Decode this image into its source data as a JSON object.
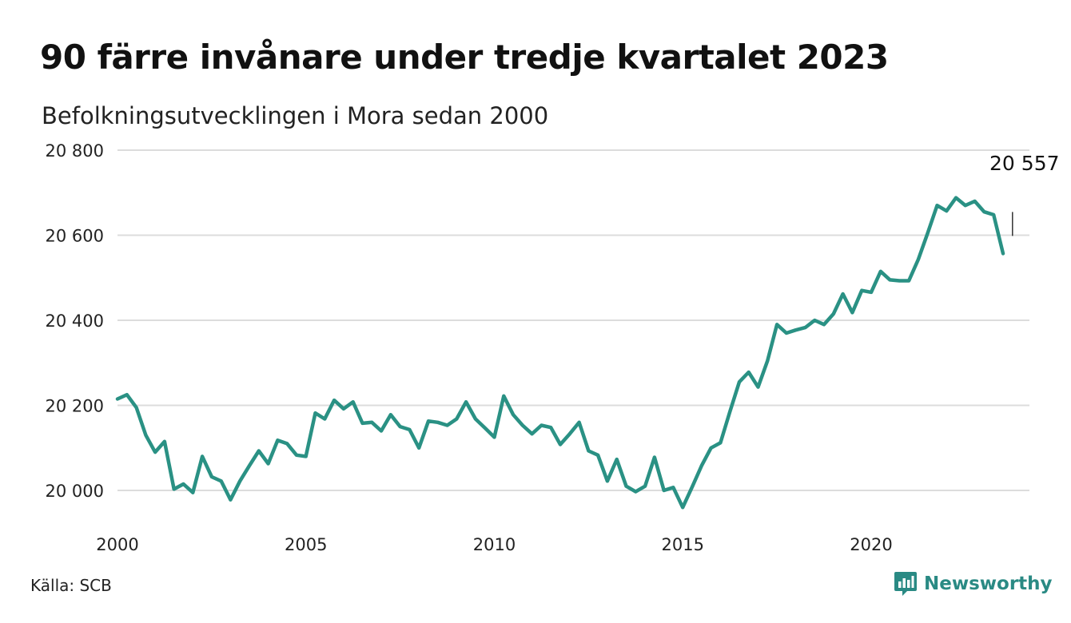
{
  "title": "90 färre invånare under tredje kvartalet 2023",
  "subtitle": "Befolkningsutvecklingen i Mora sedan 2000",
  "source": "Källa: SCB",
  "logo": {
    "text": "Newsworthy",
    "icon": "newsworthy-chart-bubble-icon",
    "color": "#2a8a84"
  },
  "chart_data": {
    "type": "line",
    "title": "90 färre invånare under tredje kvartalet 2023",
    "xlabel": "",
    "ylabel": "",
    "xlim": [
      2000,
      2024.2
    ],
    "ylim": [
      19930,
      20810
    ],
    "x_ticks": [
      2000,
      2005,
      2010,
      2015,
      2020
    ],
    "x_tick_labels": [
      "2000",
      "2005",
      "2010",
      "2015",
      "2020"
    ],
    "y_ticks": [
      20000,
      20200,
      20400,
      20600,
      20800
    ],
    "y_tick_labels": [
      "20 000",
      "20 200",
      "20 400",
      "20 600",
      "20 800"
    ],
    "grid": "horizontal",
    "legend": "none",
    "line_color": "#2a9184",
    "annotation": {
      "text": "20 557",
      "x": 2023.75,
      "y": 20557
    },
    "series": [
      {
        "start": 2000.0,
        "step": 0.25,
        "values": [
          20215,
          20225,
          20195,
          20130,
          20090,
          20115,
          20003,
          20015,
          19995,
          20080,
          20032,
          20022,
          19978,
          20022,
          20058,
          20093,
          20063,
          20118,
          20110,
          20083,
          20080,
          20182,
          20168,
          20212,
          20192,
          20208,
          20158,
          20160,
          20140,
          20178,
          20150,
          20143,
          20100,
          20163,
          20160,
          20153,
          20168,
          20208,
          20168,
          20147,
          20125,
          20222,
          20178,
          20153,
          20133,
          20153,
          20148,
          20108,
          20133,
          20160,
          20093,
          20083,
          20022,
          20073,
          20010,
          19997,
          20010,
          20078,
          20000,
          20007,
          19960,
          20008,
          20058,
          20100,
          20112,
          20185,
          20255,
          20278,
          20243,
          20305,
          20390,
          20370,
          20377,
          20383,
          20400,
          20390,
          20415,
          20462,
          20418,
          20470,
          20466,
          20515,
          20495,
          20493,
          20493,
          20543,
          20605,
          20670,
          20657,
          20688,
          20670,
          20680,
          20655,
          20648,
          20557
        ]
      }
    ]
  }
}
